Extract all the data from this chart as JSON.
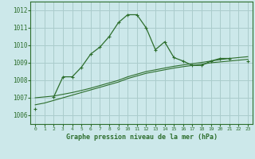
{
  "title": "Graphe pression niveau de la mer (hPa)",
  "background_color": "#cce8ea",
  "grid_color": "#aacccc",
  "line_color": "#2d6e2d",
  "xlim": [
    -0.5,
    23.5
  ],
  "ylim": [
    1005.5,
    1012.5
  ],
  "yticks": [
    1006,
    1007,
    1008,
    1009,
    1010,
    1011,
    1012
  ],
  "xticks": [
    0,
    1,
    2,
    3,
    4,
    5,
    6,
    7,
    8,
    9,
    10,
    11,
    12,
    13,
    14,
    15,
    16,
    17,
    18,
    19,
    20,
    21,
    22,
    23
  ],
  "series1_y": [
    1006.35,
    null,
    1007.05,
    1008.2,
    1008.2,
    1008.75,
    1009.5,
    1009.9,
    1010.5,
    1011.3,
    1011.75,
    1011.75,
    1011.0,
    1009.75,
    1010.2,
    1009.3,
    1009.1,
    1008.85,
    1008.85,
    1009.1,
    1009.25,
    1009.25,
    null,
    1009.1
  ],
  "series2_y": [
    1006.6,
    1006.7,
    1006.85,
    1007.0,
    1007.15,
    1007.3,
    1007.45,
    1007.6,
    1007.75,
    1007.9,
    1008.1,
    1008.25,
    1008.4,
    1008.5,
    1008.6,
    1008.7,
    1008.78,
    1008.85,
    1008.92,
    1009.0,
    1009.05,
    1009.1,
    1009.15,
    1009.2
  ],
  "series3_y": [
    1007.0,
    1007.05,
    1007.1,
    1007.2,
    1007.3,
    1007.42,
    1007.55,
    1007.7,
    1007.85,
    1008.0,
    1008.2,
    1008.35,
    1008.5,
    1008.6,
    1008.7,
    1008.8,
    1008.88,
    1008.95,
    1009.02,
    1009.1,
    1009.18,
    1009.25,
    1009.3,
    1009.35
  ]
}
